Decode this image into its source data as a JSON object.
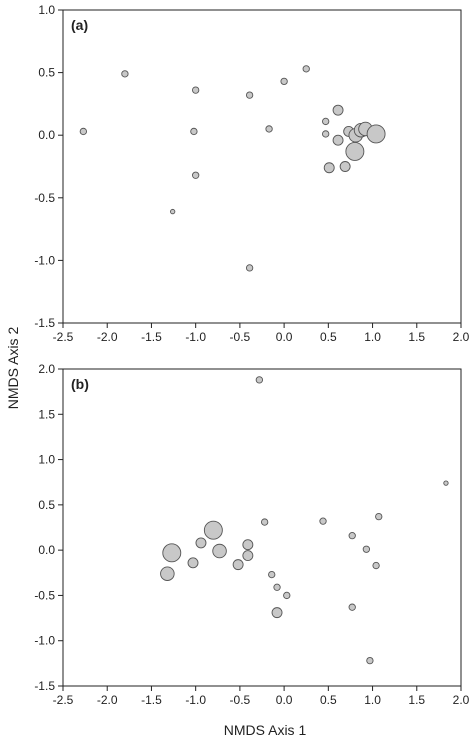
{
  "figure": {
    "xlabel": "NMDS Axis 1",
    "ylabel": "NMDS Axis 2"
  },
  "colors": {
    "point_fill": "#c8c8c8",
    "point_stroke": "#555555",
    "axis": "#222222"
  },
  "chart_data": [
    {
      "type": "scatter",
      "panel_label": "(a)",
      "xlim": [
        -2.5,
        2.0
      ],
      "ylim": [
        -1.5,
        1.0
      ],
      "xticks": [
        "-2.5",
        "-2.0",
        "-1.5",
        "-1.0",
        "-0.5",
        "0.0",
        "0.5",
        "1.0",
        "1.5",
        "2.0"
      ],
      "yticks": [
        "-1.5",
        "-1.0",
        "-0.5",
        "0.0",
        "0.5",
        "1.0"
      ],
      "grid": false,
      "points": [
        {
          "x": -2.27,
          "y": 0.03,
          "size": 1
        },
        {
          "x": -1.8,
          "y": 0.49,
          "size": 1
        },
        {
          "x": -1.26,
          "y": -0.61,
          "size": 0
        },
        {
          "x": -1.0,
          "y": 0.36,
          "size": 1
        },
        {
          "x": -1.02,
          "y": 0.03,
          "size": 1
        },
        {
          "x": -1.0,
          "y": -0.32,
          "size": 1
        },
        {
          "x": -0.39,
          "y": 0.32,
          "size": 1
        },
        {
          "x": -0.39,
          "y": -1.06,
          "size": 1
        },
        {
          "x": -0.17,
          "y": 0.05,
          "size": 1
        },
        {
          "x": 0.0,
          "y": 0.43,
          "size": 1
        },
        {
          "x": 0.25,
          "y": 0.53,
          "size": 1
        },
        {
          "x": 0.47,
          "y": 0.11,
          "size": 1
        },
        {
          "x": 0.47,
          "y": 0.01,
          "size": 1
        },
        {
          "x": 0.61,
          "y": 0.2,
          "size": 2
        },
        {
          "x": 0.61,
          "y": -0.04,
          "size": 2
        },
        {
          "x": 0.73,
          "y": 0.03,
          "size": 2
        },
        {
          "x": 0.81,
          "y": 0.0,
          "size": 3
        },
        {
          "x": 0.87,
          "y": 0.04,
          "size": 3
        },
        {
          "x": 0.92,
          "y": 0.05,
          "size": 3
        },
        {
          "x": 1.04,
          "y": 0.01,
          "size": 4
        },
        {
          "x": 0.8,
          "y": -0.13,
          "size": 4
        },
        {
          "x": 0.51,
          "y": -0.26,
          "size": 2
        },
        {
          "x": 0.69,
          "y": -0.25,
          "size": 2
        }
      ]
    },
    {
      "type": "scatter",
      "panel_label": "(b)",
      "xlim": [
        -2.5,
        2.0
      ],
      "ylim": [
        -1.5,
        2.0
      ],
      "xticks": [
        "-2.5",
        "-2.0",
        "-1.5",
        "-1.0",
        "-0.5",
        "0.0",
        "0.5",
        "1.0",
        "1.5",
        "2.0"
      ],
      "yticks": [
        "-1.5",
        "-1.0",
        "-0.5",
        "0.0",
        "0.5",
        "1.0",
        "1.5",
        "2.0"
      ],
      "grid": false,
      "points": [
        {
          "x": -0.28,
          "y": 1.88,
          "size": 1
        },
        {
          "x": 1.83,
          "y": 0.74,
          "size": 0
        },
        {
          "x": -1.27,
          "y": -0.03,
          "size": 4
        },
        {
          "x": -1.32,
          "y": -0.26,
          "size": 3
        },
        {
          "x": -1.03,
          "y": -0.14,
          "size": 2
        },
        {
          "x": -0.94,
          "y": 0.08,
          "size": 2
        },
        {
          "x": -0.8,
          "y": 0.22,
          "size": 4
        },
        {
          "x": -0.73,
          "y": -0.01,
          "size": 3
        },
        {
          "x": -0.52,
          "y": -0.16,
          "size": 2
        },
        {
          "x": -0.41,
          "y": 0.06,
          "size": 2
        },
        {
          "x": -0.41,
          "y": -0.06,
          "size": 2
        },
        {
          "x": -0.22,
          "y": 0.31,
          "size": 1
        },
        {
          "x": -0.14,
          "y": -0.27,
          "size": 1
        },
        {
          "x": -0.08,
          "y": -0.41,
          "size": 1
        },
        {
          "x": 0.03,
          "y": -0.5,
          "size": 1
        },
        {
          "x": -0.08,
          "y": -0.69,
          "size": 2
        },
        {
          "x": 0.44,
          "y": 0.32,
          "size": 1
        },
        {
          "x": 0.77,
          "y": 0.16,
          "size": 1
        },
        {
          "x": 0.93,
          "y": 0.01,
          "size": 1
        },
        {
          "x": 1.07,
          "y": 0.37,
          "size": 1
        },
        {
          "x": 1.04,
          "y": -0.17,
          "size": 1
        },
        {
          "x": 0.77,
          "y": -0.63,
          "size": 1
        },
        {
          "x": 0.97,
          "y": -1.22,
          "size": 1
        }
      ]
    }
  ]
}
